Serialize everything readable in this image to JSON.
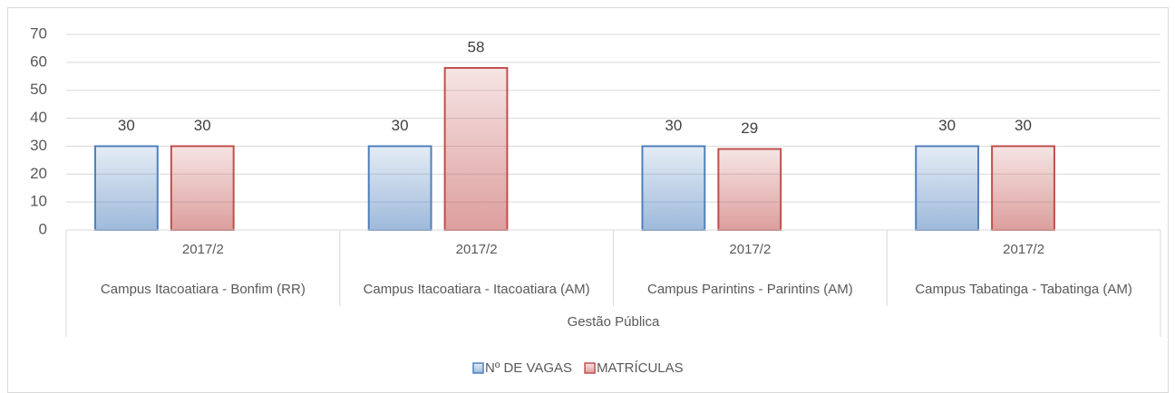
{
  "chart_data": {
    "type": "bar",
    "categories": [
      "Campus Itacoatiara - Bonfim (RR)",
      "Campus Itacoatiara - Itacoatiara (AM)",
      "Campus Parintins - Parintins (AM)",
      "Campus Tabatinga - Tabatinga (AM)"
    ],
    "category_periods": [
      "2017/2",
      "2017/2",
      "2017/2",
      "2017/2"
    ],
    "category_group": "Gestão Pública",
    "series": [
      {
        "name": "Nº DE VAGAS",
        "color": "#4f81bd",
        "values": [
          30,
          30,
          30,
          30
        ]
      },
      {
        "name": "MATRÍCULAS",
        "color": "#c0504d",
        "values": [
          30,
          58,
          29,
          30
        ]
      }
    ],
    "ylim": [
      0,
      70
    ],
    "yticks": [
      0,
      10,
      20,
      30,
      40,
      50,
      60,
      70
    ],
    "grid": true,
    "legend": "bottom"
  }
}
